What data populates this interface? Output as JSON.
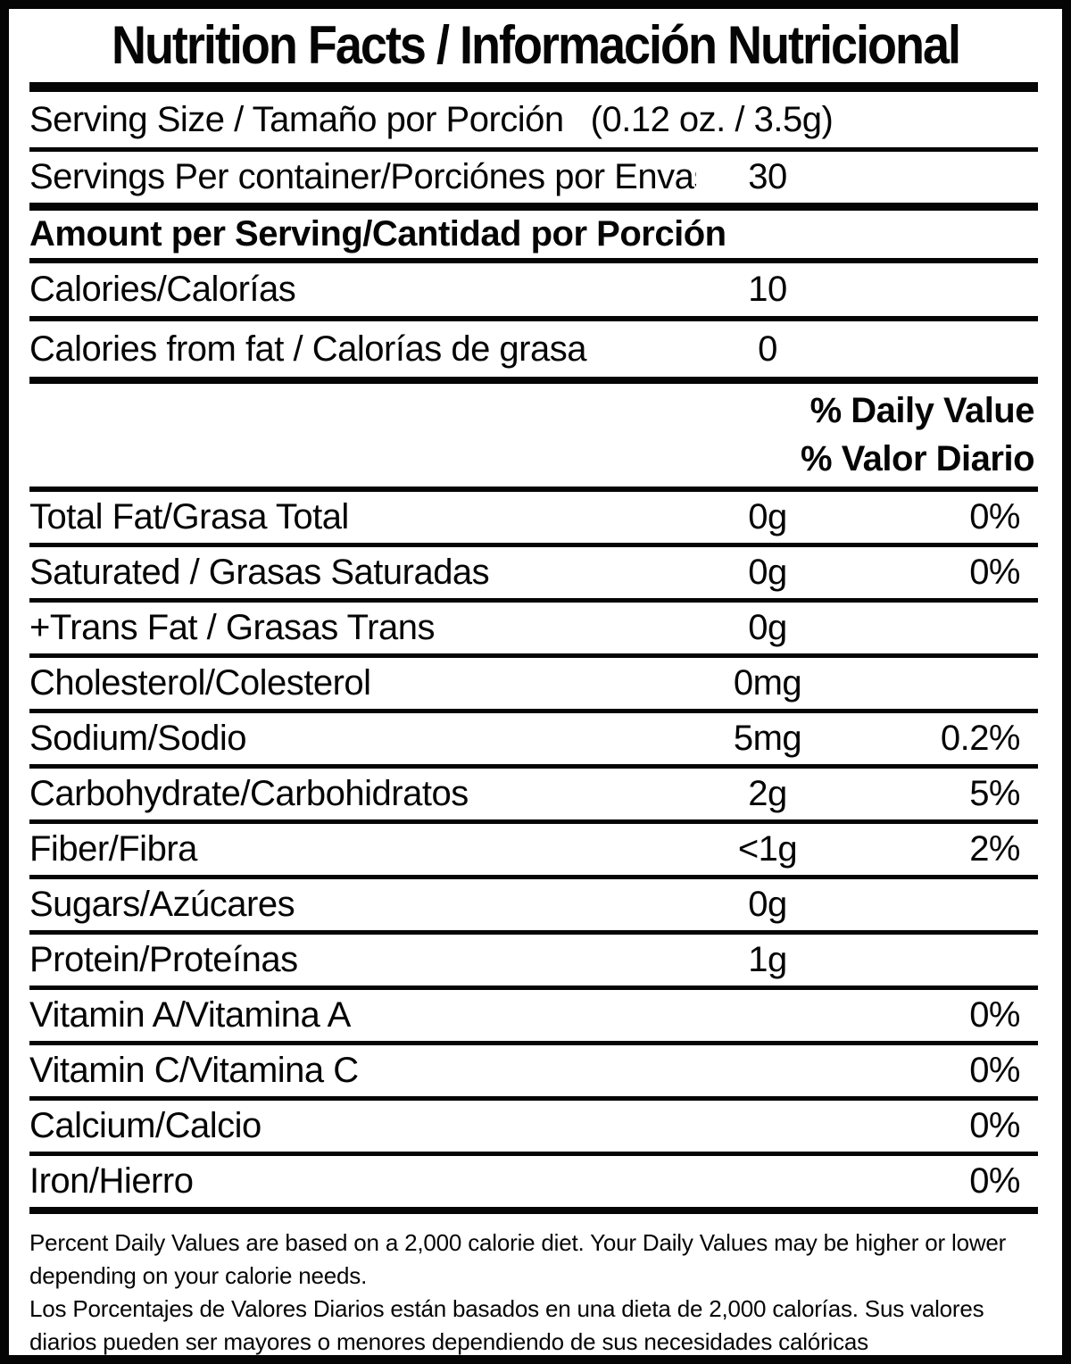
{
  "title": "Nutrition Facts / Información Nutricional",
  "serving": {
    "size_label": "Serving Size / Tamaño por Porción",
    "size_value": "(0.12 oz. / 3.5g)",
    "per_container_label": "Servings Per container/Porciónes por Envase:",
    "per_container_value": "30"
  },
  "amount_per_serving_heading": "Amount per Serving/Cantidad por Porción",
  "calories_rows": [
    {
      "label": "Calories/Calorías",
      "amount": "10"
    },
    {
      "label": "Calories from fat / Calorías de grasa",
      "amount": "0"
    }
  ],
  "daily_value_header": {
    "english": "% Daily Value",
    "spanish": "% Valor Diario"
  },
  "nutrients": [
    {
      "label": "Total Fat/Grasa Total",
      "amount": "0g",
      "dv": "0%"
    },
    {
      "label": "Saturated / Grasas Saturadas",
      "amount": "0g",
      "dv": "0%"
    },
    {
      "label": "+Trans Fat / Grasas Trans",
      "amount": "0g",
      "dv": ""
    },
    {
      "label": "Cholesterol/Colesterol",
      "amount": "0mg",
      "dv": ""
    },
    {
      "label": "Sodium/Sodio",
      "amount": "5mg",
      "dv": "0.2%"
    },
    {
      "label": "Carbohydrate/Carbohidratos",
      "amount": "2g",
      "dv": "5%"
    },
    {
      "label": "Fiber/Fibra",
      "amount": "<1g",
      "dv": "2%"
    },
    {
      "label": "Sugars/Azúcares",
      "amount": "0g",
      "dv": ""
    },
    {
      "label": "Protein/Proteínas",
      "amount": "1g",
      "dv": ""
    },
    {
      "label": "Vitamin A/Vitamina A",
      "amount": "",
      "dv": "0%"
    },
    {
      "label": "Vitamin C/Vitamina C",
      "amount": "",
      "dv": "0%"
    },
    {
      "label": "Calcium/Calcio",
      "amount": "",
      "dv": "0%"
    },
    {
      "label": "Iron/Hierro",
      "amount": "",
      "dv": "0%"
    }
  ],
  "footnotes": {
    "english": "Percent Daily Values are based on a 2,000 calorie diet. Your Daily Values may be higher or lower depending on your calorie needs.",
    "spanish": "Los Porcentajes de Valores Diarios están basados en una dieta de 2,000 calorías. Sus valores diarios pueden ser mayores o menores dependiendo de sus necesidades calóricas"
  },
  "colors": {
    "text": "#050505",
    "border": "#050505",
    "background": "#ffffff"
  }
}
